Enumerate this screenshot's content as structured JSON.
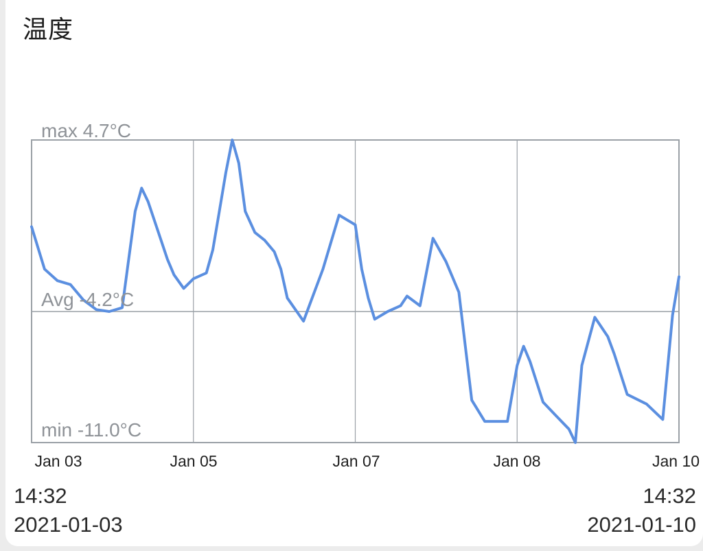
{
  "card_title": "温度",
  "range_start": {
    "time": "14:32",
    "date": "2021-01-03"
  },
  "range_end": {
    "time": "14:32",
    "date": "2021-01-10"
  },
  "colors": {
    "line": "#5b8fe0",
    "grid": "#9aa0a6",
    "label": "#8e9297",
    "tick": "#1f1f1f"
  },
  "chart_data": {
    "type": "line",
    "title": "",
    "xlabel": "",
    "ylabel": "",
    "ylim": [
      -11.0,
      4.7
    ],
    "grid": true,
    "x_ticks": [
      "Jan 03",
      "Jan 05",
      "Jan 07",
      "Jan 08",
      "Jan 10"
    ],
    "annotations": {
      "max": "max 4.7°C",
      "avg": "Avg -4.2°C",
      "min": "min -11.0°C"
    },
    "series": [
      {
        "x": [
          0,
          0.2,
          0.4,
          0.6,
          0.8,
          1.0,
          1.2,
          1.4,
          1.5,
          1.6,
          1.7,
          1.8,
          2.0,
          2.1,
          2.2,
          2.35,
          2.5,
          2.7,
          2.8,
          2.9,
          3.0,
          3.1,
          3.2,
          3.3,
          3.45,
          3.6,
          3.75,
          3.85,
          3.95,
          4.2,
          4.5,
          4.75,
          5.0,
          5.1,
          5.2,
          5.3,
          5.5,
          5.7,
          5.8,
          6.0,
          6.2,
          6.4,
          6.6,
          6.7,
          6.8,
          7.0,
          7.2,
          7.35,
          7.5,
          7.6,
          7.7,
          7.9,
          8.1,
          8.3,
          8.4,
          8.5,
          8.7,
          8.9,
          9.0,
          9.2,
          9.5,
          9.75,
          9.9,
          10.0
        ],
        "values": [
          0.2,
          -2.0,
          -2.6,
          -2.8,
          -3.6,
          -4.1,
          -4.2,
          -4.0,
          -1.5,
          1.0,
          2.2,
          1.5,
          -0.5,
          -1.5,
          -2.3,
          -3.0,
          -2.5,
          -2.2,
          -1.0,
          1.0,
          3.0,
          4.7,
          3.5,
          1.0,
          -0.1,
          -0.5,
          -1.1,
          -2.0,
          -3.5,
          -4.7,
          -2.0,
          0.8,
          0.3,
          -2.0,
          -3.5,
          -4.6,
          -4.2,
          -3.9,
          -3.4,
          -3.9,
          -0.4,
          -1.6,
          -3.2,
          -6.0,
          -8.8,
          -9.9,
          -9.9,
          -9.9,
          -7.0,
          -6.0,
          -6.8,
          -8.9,
          -9.6,
          -10.3,
          -11.0,
          -7.0,
          -4.5,
          -5.5,
          -6.4,
          -8.5,
          -9.0,
          -9.8,
          -4.4,
          -2.4
        ]
      }
    ]
  }
}
